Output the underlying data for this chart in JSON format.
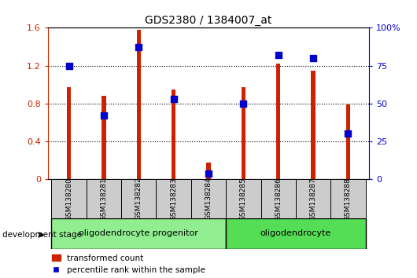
{
  "title": "GDS2380 / 1384007_at",
  "samples": [
    "GSM138280",
    "GSM138281",
    "GSM138282",
    "GSM138283",
    "GSM138284",
    "GSM138285",
    "GSM138286",
    "GSM138287",
    "GSM138288"
  ],
  "red_values": [
    0.97,
    0.88,
    1.575,
    0.95,
    0.18,
    0.97,
    1.22,
    1.15,
    0.79
  ],
  "blue_pct": [
    75,
    42,
    87,
    53,
    4,
    50,
    82,
    80,
    30
  ],
  "ylim_left": [
    0,
    1.6
  ],
  "ylim_right": [
    0,
    100
  ],
  "yticks_left": [
    0,
    0.4,
    0.8,
    1.2,
    1.6
  ],
  "yticks_right": [
    0,
    25,
    50,
    75,
    100
  ],
  "ytick_labels_left": [
    "0",
    "0.4",
    "0.8",
    "1.2",
    "1.6"
  ],
  "ytick_labels_right": [
    "0",
    "25",
    "50",
    "75",
    "100%"
  ],
  "groups": [
    {
      "label": "oligodendrocyte progenitor",
      "start": 0,
      "end": 4,
      "color": "#90ee90"
    },
    {
      "label": "oligodendrocyte",
      "start": 5,
      "end": 8,
      "color": "#55dd55"
    }
  ],
  "bar_color": "#cc2200",
  "dot_color": "#0000cc",
  "bar_width": 0.12,
  "dot_size": 40,
  "background_color": "#ffffff",
  "plot_bg_color": "#ffffff",
  "tick_bg_color": "#cccccc",
  "legend_labels": [
    "transformed count",
    "percentile rank within the sample"
  ],
  "dev_stage_label": "development stage",
  "left_tick_color": "#cc2200",
  "right_tick_color": "#0000cc"
}
